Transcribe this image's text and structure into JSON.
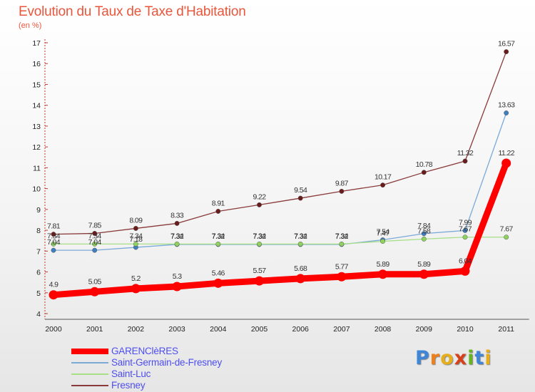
{
  "chart_data": {
    "type": "line",
    "title": "Evolution du Taux de Taxe d'Habitation",
    "subtitle": "(en %)",
    "xlabel": "",
    "ylabel": "",
    "x": [
      "2000",
      "2001",
      "2002",
      "2003",
      "2004",
      "2005",
      "2006",
      "2007",
      "2008",
      "2009",
      "2010",
      "2011"
    ],
    "ylim": [
      4,
      17
    ],
    "yticks": [
      4,
      5,
      6,
      7,
      8,
      9,
      10,
      11,
      12,
      13,
      14,
      15,
      16,
      17
    ],
    "grid": false,
    "legend_position": "bottom-left",
    "series": [
      {
        "name": "GARENClèRES",
        "color": "#ff0000",
        "marker": "#ff0000",
        "values": [
          4.9,
          5.05,
          5.2,
          5.3,
          5.46,
          5.57,
          5.68,
          5.77,
          5.89,
          5.89,
          6.04,
          11.22
        ],
        "labels": [
          "4.9",
          "5.05",
          "5.2",
          "5.3",
          "5.46",
          "5.57",
          "5.68",
          "5.77",
          "5.89",
          "5.89",
          "6.04",
          "11.22"
        ]
      },
      {
        "name": "Saint-Germain-de-Fresney",
        "color": "#7aaad8",
        "marker": "#3f7fc0",
        "values": [
          7.04,
          7.04,
          7.18,
          7.32,
          7.32,
          7.32,
          7.32,
          7.32,
          7.54,
          7.84,
          7.99,
          13.63
        ],
        "labels": [
          "7.04",
          "7.04",
          "7.18",
          "7.32",
          "7.32",
          "7.32",
          "7.32",
          "7.32",
          "7.54",
          "7.84",
          "7.99",
          "13.63"
        ]
      },
      {
        "name": "Saint-Luc",
        "color": "#a8e088",
        "marker": "#8fd35f",
        "values": [
          7.34,
          7.34,
          7.34,
          7.34,
          7.34,
          7.34,
          7.34,
          7.34,
          7.47,
          7.58,
          7.67,
          7.67
        ],
        "labels": [
          "7.34",
          "7.34",
          "7.34",
          "7.34",
          "7.34",
          "7.34",
          "7.34",
          "7.34",
          "7.47",
          "7.58",
          "7.67",
          "7.67"
        ]
      },
      {
        "name": "Fresney",
        "color": "#8a3a3a",
        "marker": "#6a1c1c",
        "values": [
          7.81,
          7.85,
          8.09,
          8.33,
          8.91,
          9.22,
          9.54,
          9.87,
          10.17,
          10.78,
          11.32,
          16.57
        ],
        "labels": [
          "7.81",
          "7.85",
          "8.09",
          "8.33",
          "8.91",
          "9.22",
          "9.54",
          "9.87",
          "10.17",
          "10.78",
          "11.32",
          "16.57"
        ]
      }
    ]
  },
  "logo": {
    "text": "Proxiti",
    "letter_colors": [
      "#3f86d6",
      "#f07e1a",
      "#e6ae1a",
      "#d8401a",
      "#66b51e",
      "#3f86d6",
      "#e6ae1a"
    ]
  }
}
